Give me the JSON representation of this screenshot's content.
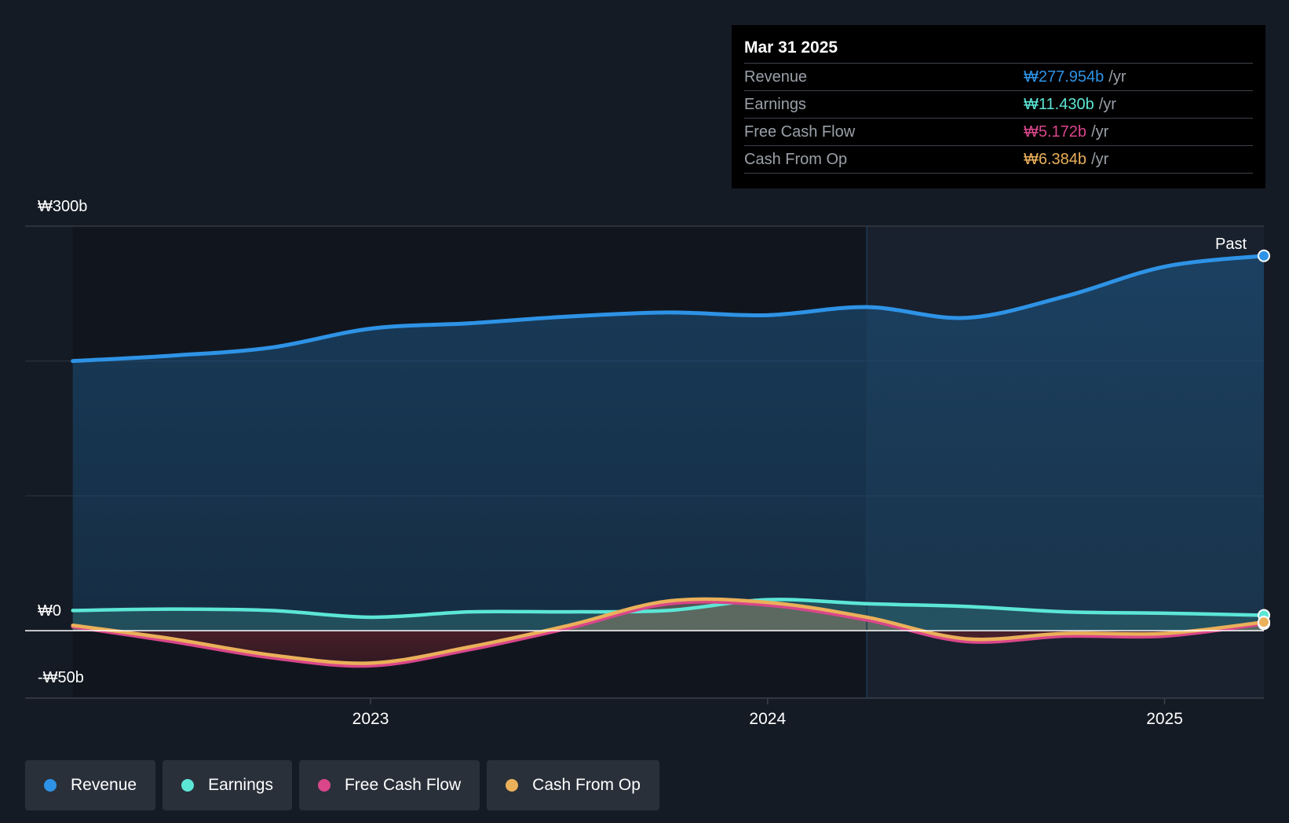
{
  "tooltip": {
    "date": "Mar 31 2025",
    "rows": [
      {
        "label": "Revenue",
        "value": "₩277.954b",
        "unit": "/yr",
        "color": "#2e93e6"
      },
      {
        "label": "Earnings",
        "value": "₩11.430b",
        "unit": "/yr",
        "color": "#5ce6d6"
      },
      {
        "label": "Free Cash Flow",
        "value": "₩5.172b",
        "unit": "/yr",
        "color": "#d9468a"
      },
      {
        "label": "Cash From Op",
        "value": "₩6.384b",
        "unit": "/yr",
        "color": "#eab05a"
      }
    ]
  },
  "past_label": "Past",
  "legend": [
    {
      "label": "Revenue",
      "color": "#2e93e6"
    },
    {
      "label": "Earnings",
      "color": "#5ce6d6"
    },
    {
      "label": "Free Cash Flow",
      "color": "#d9468a"
    },
    {
      "label": "Cash From Op",
      "color": "#eab05a"
    }
  ],
  "chart_data": {
    "type": "line",
    "y_tick_labels": [
      "₩300b",
      "₩0",
      "-₩50b"
    ],
    "x_tick_labels": [
      "2023",
      "2024",
      "2025"
    ],
    "x_ticks": [
      2023.0,
      2024.0,
      2025.0
    ],
    "ylim": [
      -50,
      300
    ],
    "xlim": [
      2022.13,
      2025.25
    ],
    "past_start": 2024.25,
    "grid": true,
    "legend_position": "bottom",
    "series": [
      {
        "name": "Revenue",
        "color": "#2e93e6",
        "x": [
          2022.25,
          2022.5,
          2022.75,
          2023.0,
          2023.25,
          2023.5,
          2023.75,
          2024.0,
          2024.25,
          2024.5,
          2024.75,
          2025.0,
          2025.25
        ],
        "values": [
          200,
          204,
          210,
          224,
          228,
          233,
          236,
          234,
          240,
          232,
          248,
          270,
          278
        ]
      },
      {
        "name": "Earnings",
        "color": "#5ce6d6",
        "x": [
          2022.25,
          2022.5,
          2022.75,
          2023.0,
          2023.25,
          2023.5,
          2023.75,
          2024.0,
          2024.25,
          2024.5,
          2024.75,
          2025.0,
          2025.25
        ],
        "values": [
          15,
          16,
          15,
          10,
          14,
          14,
          15,
          23,
          20,
          18,
          14,
          13,
          11.43
        ]
      },
      {
        "name": "Free Cash Flow",
        "color": "#d9468a",
        "x": [
          2022.25,
          2022.5,
          2022.75,
          2023.0,
          2023.25,
          2023.5,
          2023.75,
          2024.0,
          2024.25,
          2024.5,
          2024.75,
          2025.0,
          2025.25
        ],
        "values": [
          3,
          -8,
          -20,
          -26,
          -14,
          2,
          20,
          19,
          8,
          -8,
          -4,
          -4,
          5.172
        ]
      },
      {
        "name": "Cash From Op",
        "color": "#eab05a",
        "x": [
          2022.25,
          2022.5,
          2022.75,
          2023.0,
          2023.25,
          2023.5,
          2023.75,
          2024.0,
          2024.25,
          2024.5,
          2024.75,
          2025.0,
          2025.25
        ],
        "values": [
          4,
          -6,
          -18,
          -24,
          -12,
          4,
          22,
          21,
          10,
          -6,
          -2,
          -2,
          6.384
        ]
      }
    ]
  }
}
